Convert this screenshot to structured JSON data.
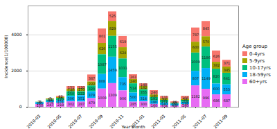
{
  "chart_data": {
    "type": "bar",
    "stacked": true,
    "data_labels": true,
    "legend": "right",
    "legend_title": "Age group",
    "x_label": "Year month",
    "y_label": "Incidence(1/100000)",
    "ylim": [
      0,
      5600
    ],
    "yticks": [
      0,
      2000,
      4000
    ],
    "categories": [
      "2010-03",
      null,
      "2010-05",
      null,
      "2010-07",
      null,
      "2010-09",
      null,
      "2010-11",
      null,
      "2011-01",
      null,
      "2011-03",
      null,
      "2011-05",
      null,
      "2011-07",
      null,
      "2011-09"
    ],
    "series": [
      {
        "name": "0-4yrs",
        "color": "#F8766D",
        "values": [
          1,
          7,
          62,
          151,
          120,
          387,
          801,
          525,
          619,
          261,
          148,
          240,
          131,
          69,
          166,
          787,
          845,
          626,
          371
        ]
      },
      {
        "name": "5-9yrs",
        "color": "#A3A500",
        "values": [
          7,
          55,
          55,
          140,
          170,
          222,
          626,
          829,
          624,
          240,
          182,
          140,
          84,
          7,
          54,
          600,
          570,
          382,
          345
        ]
      },
      {
        "name": "10-17yrs",
        "color": "#00BF7D",
        "values": [
          21,
          53,
          120,
          250,
          222,
          320,
          1087,
          1155,
          1031,
          514,
          355,
          191,
          141,
          60,
          104,
          1009,
          1186,
          820,
          641
        ]
      },
      {
        "name": "18-59yrs",
        "color": "#00B0F6",
        "values": [
          105,
          102,
          151,
          306,
          351,
          379,
          808,
          1459,
          735,
          500,
          314,
          190,
          140,
          100,
          138,
          807,
          1149,
          600,
          553
        ]
      },
      {
        "name": "60+yrs",
        "color": "#E76BF3",
        "values": [
          150,
          247,
          219,
          302,
          287,
          479,
          1008,
          1309,
          906,
          285,
          300,
          160,
          104,
          64,
          140,
          1182,
          996,
          686,
          687
        ]
      }
    ]
  }
}
